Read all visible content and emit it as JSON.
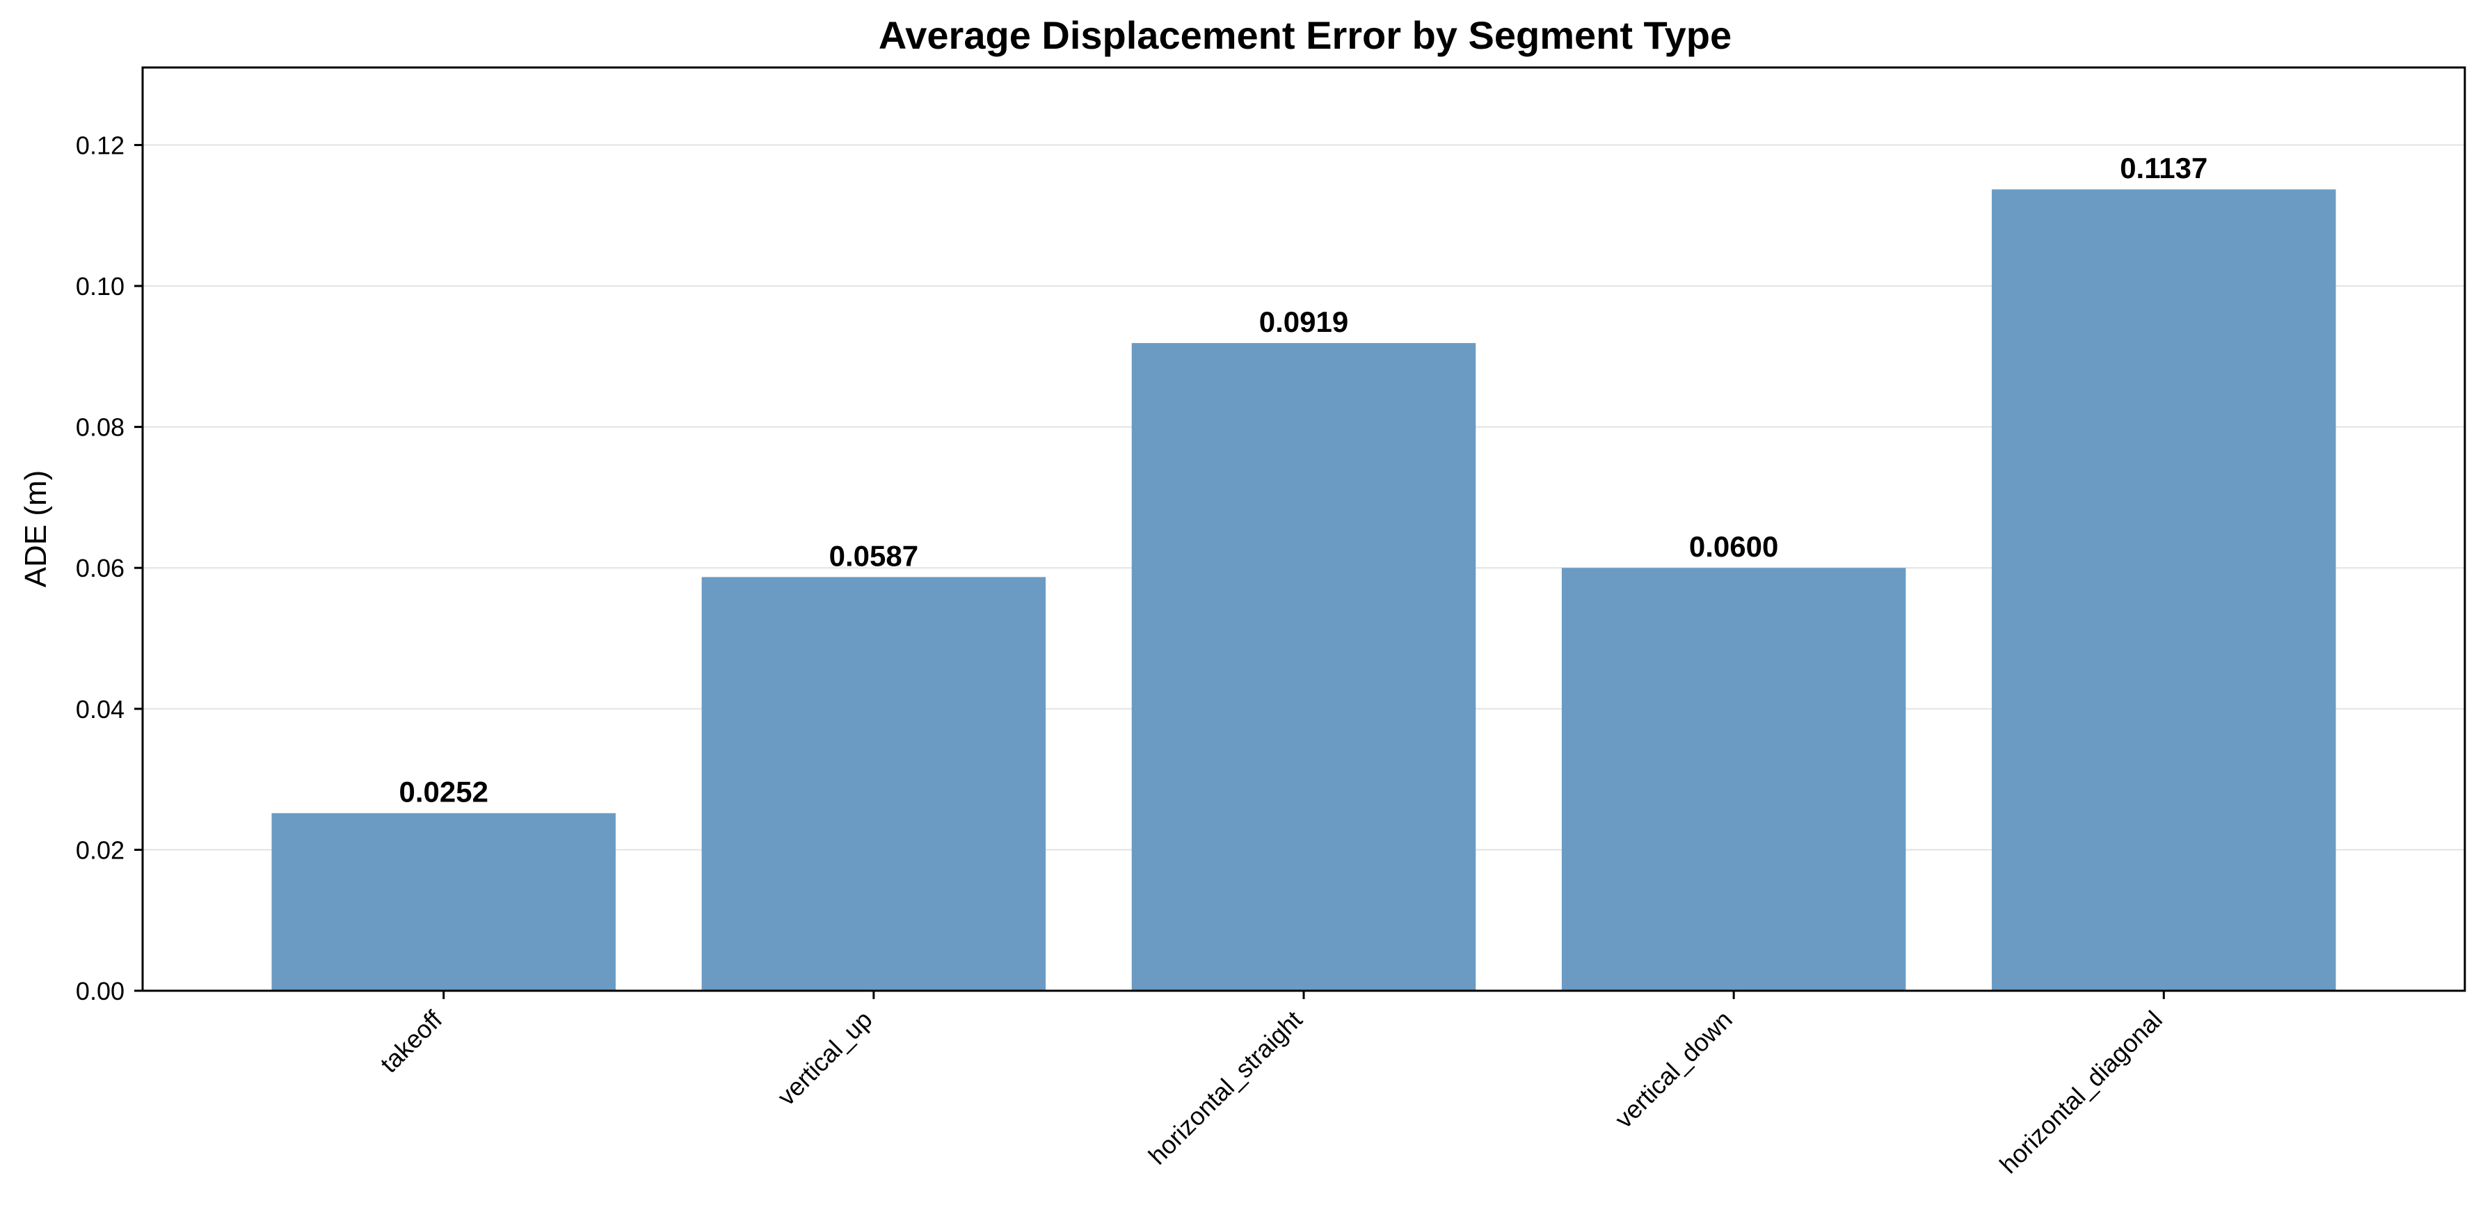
{
  "chart_data": {
    "type": "bar",
    "title": "Average Displacement Error by Segment Type",
    "xlabel": "",
    "ylabel": "ADE (m)",
    "categories": [
      "takeoff",
      "vertical_up",
      "horizontal_straight",
      "vertical_down",
      "horizontal_diagonal"
    ],
    "values": [
      0.0252,
      0.0587,
      0.0919,
      0.06,
      0.1137
    ],
    "value_labels": [
      "0.0252",
      "0.0587",
      "0.0919",
      "0.0600",
      "0.1137"
    ],
    "ylim": [
      0,
      0.131
    ],
    "yticks": [
      0.0,
      0.02,
      0.04,
      0.06,
      0.08,
      0.1,
      0.12
    ],
    "ytick_labels": [
      "0.00",
      "0.02",
      "0.04",
      "0.06",
      "0.08",
      "0.10",
      "0.12"
    ],
    "grid": "horizontal",
    "bar_color": "#6b9bc3"
  }
}
